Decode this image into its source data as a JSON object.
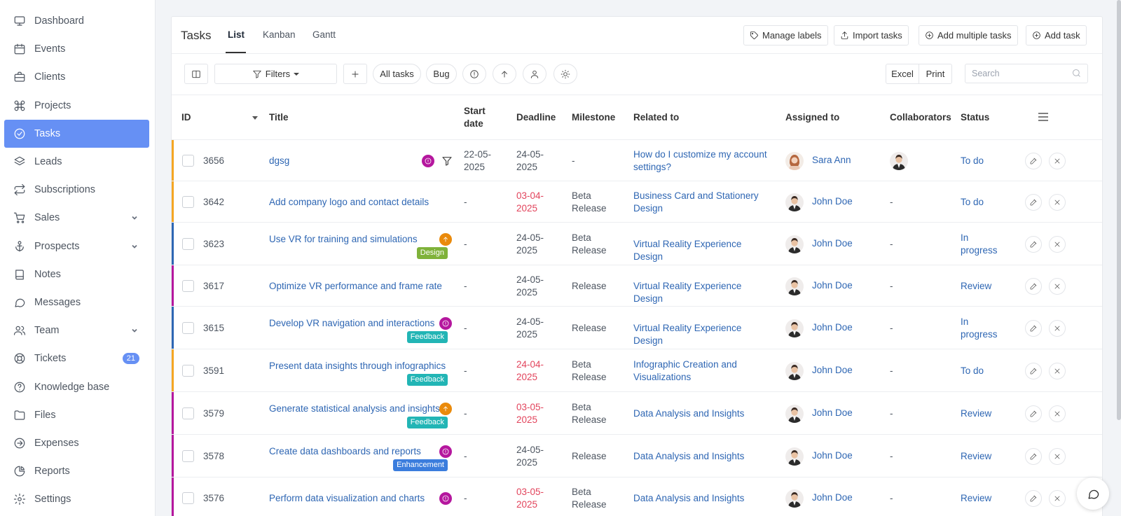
{
  "sidebar": {
    "items": [
      {
        "label": "Dashboard",
        "icon": "monitor-icon"
      },
      {
        "label": "Events",
        "icon": "calendar-icon"
      },
      {
        "label": "Clients",
        "icon": "briefcase-icon"
      },
      {
        "label": "Projects",
        "icon": "command-icon"
      },
      {
        "label": "Tasks",
        "icon": "check-circle-icon",
        "active": true
      },
      {
        "label": "Leads",
        "icon": "layers-icon"
      },
      {
        "label": "Subscriptions",
        "icon": "repeat-icon"
      },
      {
        "label": "Sales",
        "icon": "cart-icon",
        "expandable": true
      },
      {
        "label": "Prospects",
        "icon": "anchor-icon",
        "expandable": true
      },
      {
        "label": "Notes",
        "icon": "book-icon"
      },
      {
        "label": "Messages",
        "icon": "message-icon"
      },
      {
        "label": "Team",
        "icon": "users-icon",
        "expandable": true
      },
      {
        "label": "Tickets",
        "icon": "lifebuoy-icon",
        "badge": "21"
      },
      {
        "label": "Knowledge base",
        "icon": "help-circle-icon"
      },
      {
        "label": "Files",
        "icon": "folder-icon"
      },
      {
        "label": "Expenses",
        "icon": "arrow-circle-icon"
      },
      {
        "label": "Reports",
        "icon": "pie-chart-icon"
      },
      {
        "label": "Settings",
        "icon": "settings-icon"
      }
    ]
  },
  "header": {
    "title": "Tasks",
    "tabs": [
      "List",
      "Kanban",
      "Gantt"
    ],
    "active_tab": "List",
    "buttons": {
      "manage_labels": "Manage labels",
      "import_tasks": "Import tasks",
      "add_multiple": "Add multiple tasks",
      "add_task": "Add task"
    }
  },
  "filters": {
    "filters_label": "Filters",
    "all_tasks": "All tasks",
    "bug": "Bug",
    "excel": "Excel",
    "print": "Print",
    "search_placeholder": "Search"
  },
  "table": {
    "columns": {
      "id": "ID",
      "title": "Title",
      "start_date": "Start date",
      "deadline": "Deadline",
      "milestone": "Milestone",
      "related_to": "Related to",
      "assigned_to": "Assigned to",
      "collaborators": "Collaborators",
      "status": "Status"
    },
    "rows": [
      {
        "id": "3656",
        "title": "dgsg",
        "start": "22-05-2025",
        "deadline": "24-05-2025",
        "deadline_overdue": false,
        "milestone": "-",
        "related": "How do I customize my account settings?",
        "assigned": "Sara Ann",
        "collaborators": "",
        "status": "To do",
        "border_color": "#f5a623",
        "priority_icon": "alert-icon",
        "priority_color": "#b5179e",
        "filter_icon": true,
        "label": "",
        "label_color": ""
      },
      {
        "id": "3642",
        "title": "Add company logo and contact details",
        "start": "-",
        "deadline": "03-04-2025",
        "deadline_overdue": true,
        "milestone": "Beta Release",
        "related": "Business Card and Stationery Design",
        "assigned": "John Doe",
        "collaborators": "-",
        "status": "To do",
        "border_color": "#f5a623",
        "priority_icon": "",
        "priority_color": "",
        "label": "",
        "label_color": ""
      },
      {
        "id": "3623",
        "title": "Use VR for training and simulations",
        "start": "-",
        "deadline": "24-05-2025",
        "deadline_overdue": false,
        "milestone": "Beta Release",
        "related": "Virtual Reality Experience Design",
        "assigned": "John Doe",
        "collaborators": "-",
        "status": "In progress",
        "border_color": "#2e66b3",
        "priority_icon": "arrow-up-icon",
        "priority_color": "#ea8a0b",
        "label": "Design",
        "label_color": "#7fb23a"
      },
      {
        "id": "3617",
        "title": "Optimize VR performance and frame rate",
        "start": "-",
        "deadline": "24-05-2025",
        "deadline_overdue": false,
        "milestone": "Release",
        "related": "Virtual Reality Experience Design",
        "assigned": "John Doe",
        "collaborators": "-",
        "status": "Review",
        "border_color": "#b5179e",
        "priority_icon": "",
        "priority_color": "",
        "label": "",
        "label_color": ""
      },
      {
        "id": "3615",
        "title": "Develop VR navigation and interactions",
        "start": "-",
        "deadline": "24-05-2025",
        "deadline_overdue": false,
        "milestone": "Release",
        "related": "Virtual Reality Experience Design",
        "assigned": "John Doe",
        "collaborators": "-",
        "status": "In progress",
        "border_color": "#2e66b3",
        "priority_icon": "alert-icon",
        "priority_color": "#b5179e",
        "label": "Feedback",
        "label_color": "#22b5b5"
      },
      {
        "id": "3591",
        "title": "Present data insights through infographics",
        "start": "-",
        "deadline": "24-04-2025",
        "deadline_overdue": true,
        "milestone": "Beta Release",
        "related": "Infographic Creation and Visualizations",
        "assigned": "John Doe",
        "collaborators": "-",
        "status": "To do",
        "border_color": "#f5a623",
        "priority_icon": "",
        "priority_color": "",
        "label": "Feedback",
        "label_color": "#22b5b5"
      },
      {
        "id": "3579",
        "title": "Generate statistical analysis and insights",
        "start": "-",
        "deadline": "03-05-2025",
        "deadline_overdue": true,
        "milestone": "Beta Release",
        "related": "Data Analysis and Insights",
        "assigned": "John Doe",
        "collaborators": "-",
        "status": "Review",
        "border_color": "#b5179e",
        "priority_icon": "arrow-up-icon",
        "priority_color": "#ea8a0b",
        "label": "Feedback",
        "label_color": "#22b5b5"
      },
      {
        "id": "3578",
        "title": "Create data dashboards and reports",
        "start": "-",
        "deadline": "24-05-2025",
        "deadline_overdue": false,
        "milestone": "Release",
        "related": "Data Analysis and Insights",
        "assigned": "John Doe",
        "collaborators": "-",
        "status": "Review",
        "border_color": "#b5179e",
        "priority_icon": "alert-icon",
        "priority_color": "#b5179e",
        "label": "Enhancement",
        "label_color": "#3b7ddd"
      },
      {
        "id": "3576",
        "title": "Perform data visualization and charts",
        "start": "-",
        "deadline": "03-05-2025",
        "deadline_overdue": true,
        "milestone": "Beta Release",
        "related": "Data Analysis and Insights",
        "assigned": "John Doe",
        "collaborators": "-",
        "status": "Review",
        "border_color": "#b5179e",
        "priority_icon": "alert-icon",
        "priority_color": "#b5179e",
        "label": "",
        "label_color": ""
      }
    ]
  }
}
